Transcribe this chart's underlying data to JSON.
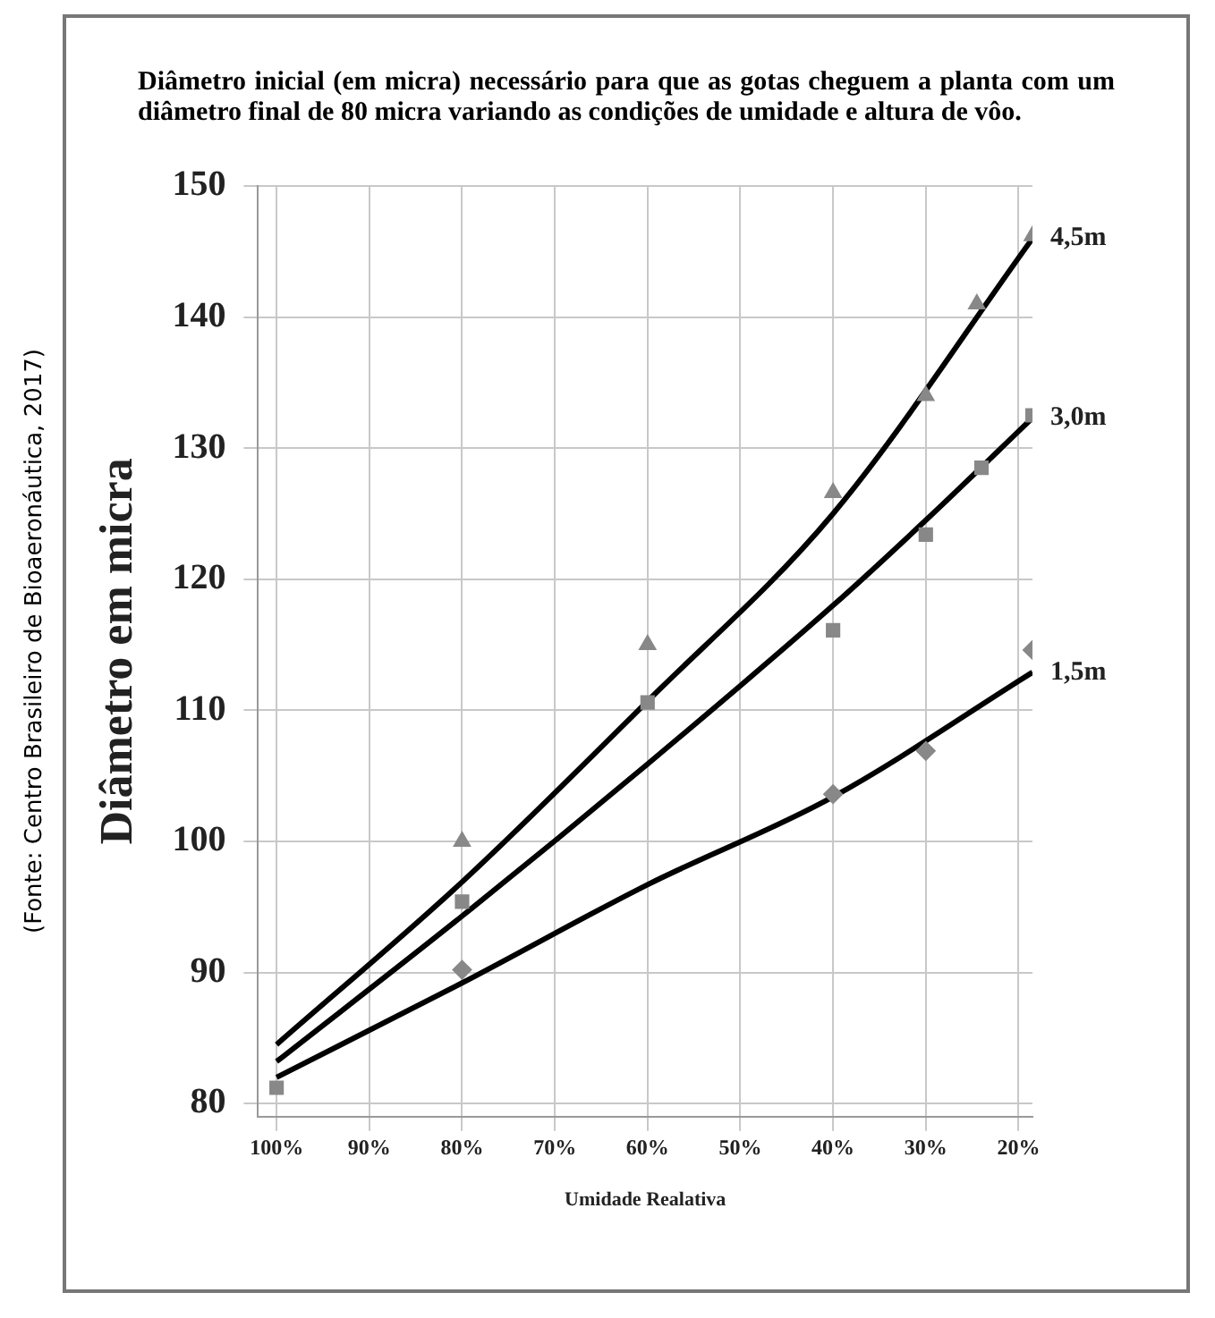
{
  "chart_data": {
    "type": "scatter",
    "title": "Diâmetro inicial (em micra) necessário para que as gotas cheguem a planta com um diâmetro final de 80 micra variando as condições de umidade e altura de vôo.",
    "xlabel": "Umidade Realativa",
    "ylabel": "Diâmetro em micra",
    "annotations": [
      "(Fonte: Centro Brasileiro de Bioaeronáutica, 2017)"
    ],
    "xlim": [
      102,
      18.5
    ],
    "ylim": [
      79,
      150
    ],
    "xticks": [
      {
        "value": 100,
        "label": "100%"
      },
      {
        "value": 90,
        "label": "90%"
      },
      {
        "value": 80,
        "label": "80%"
      },
      {
        "value": 70,
        "label": "70%"
      },
      {
        "value": 60,
        "label": "60%"
      },
      {
        "value": 50,
        "label": "50%"
      },
      {
        "value": 40,
        "label": "40%"
      },
      {
        "value": 30,
        "label": "30%"
      },
      {
        "value": 20,
        "label": "20%"
      }
    ],
    "yticks": [
      80,
      90,
      100,
      110,
      120,
      130,
      140,
      150
    ],
    "grid": true,
    "series": [
      {
        "type": "line",
        "name": "4,5m",
        "color": "#000000",
        "marker": "none",
        "x": [
          100,
          80,
          60,
          40,
          18.5
        ],
        "values": [
          84.5,
          96.9,
          110.7,
          125,
          146
        ]
      },
      {
        "type": "line",
        "name": "3,0m",
        "color": "#000000",
        "marker": "none",
        "x": [
          100,
          80,
          60,
          40,
          30,
          18.5
        ],
        "values": [
          83.2,
          94.3,
          105.9,
          118,
          124.5,
          132.3
        ]
      },
      {
        "type": "line",
        "name": "1,5m",
        "color": "#000000",
        "marker": "none",
        "x": [
          100,
          80,
          60,
          40,
          18.5
        ],
        "values": [
          82,
          89.2,
          96.7,
          103.4,
          112.9
        ]
      },
      {
        "type": "scatter",
        "color": "#888888",
        "marker": "triangle",
        "x": [
          80,
          60,
          40,
          30,
          24.5,
          18.5
        ],
        "values": [
          100,
          115,
          126.6,
          134,
          141,
          146.2
        ]
      },
      {
        "type": "scatter",
        "color": "#888888",
        "marker": "square",
        "x": [
          100,
          80,
          60,
          40,
          30,
          24,
          18.5
        ],
        "values": [
          81.2,
          95.4,
          110.6,
          116.1,
          123.4,
          128.5,
          132.5
        ]
      },
      {
        "type": "scatter",
        "color": "#888888",
        "marker": "diamond",
        "x": [
          80,
          40,
          30,
          18.5
        ],
        "values": [
          90.2,
          103.6,
          106.9,
          114.6
        ]
      }
    ]
  }
}
